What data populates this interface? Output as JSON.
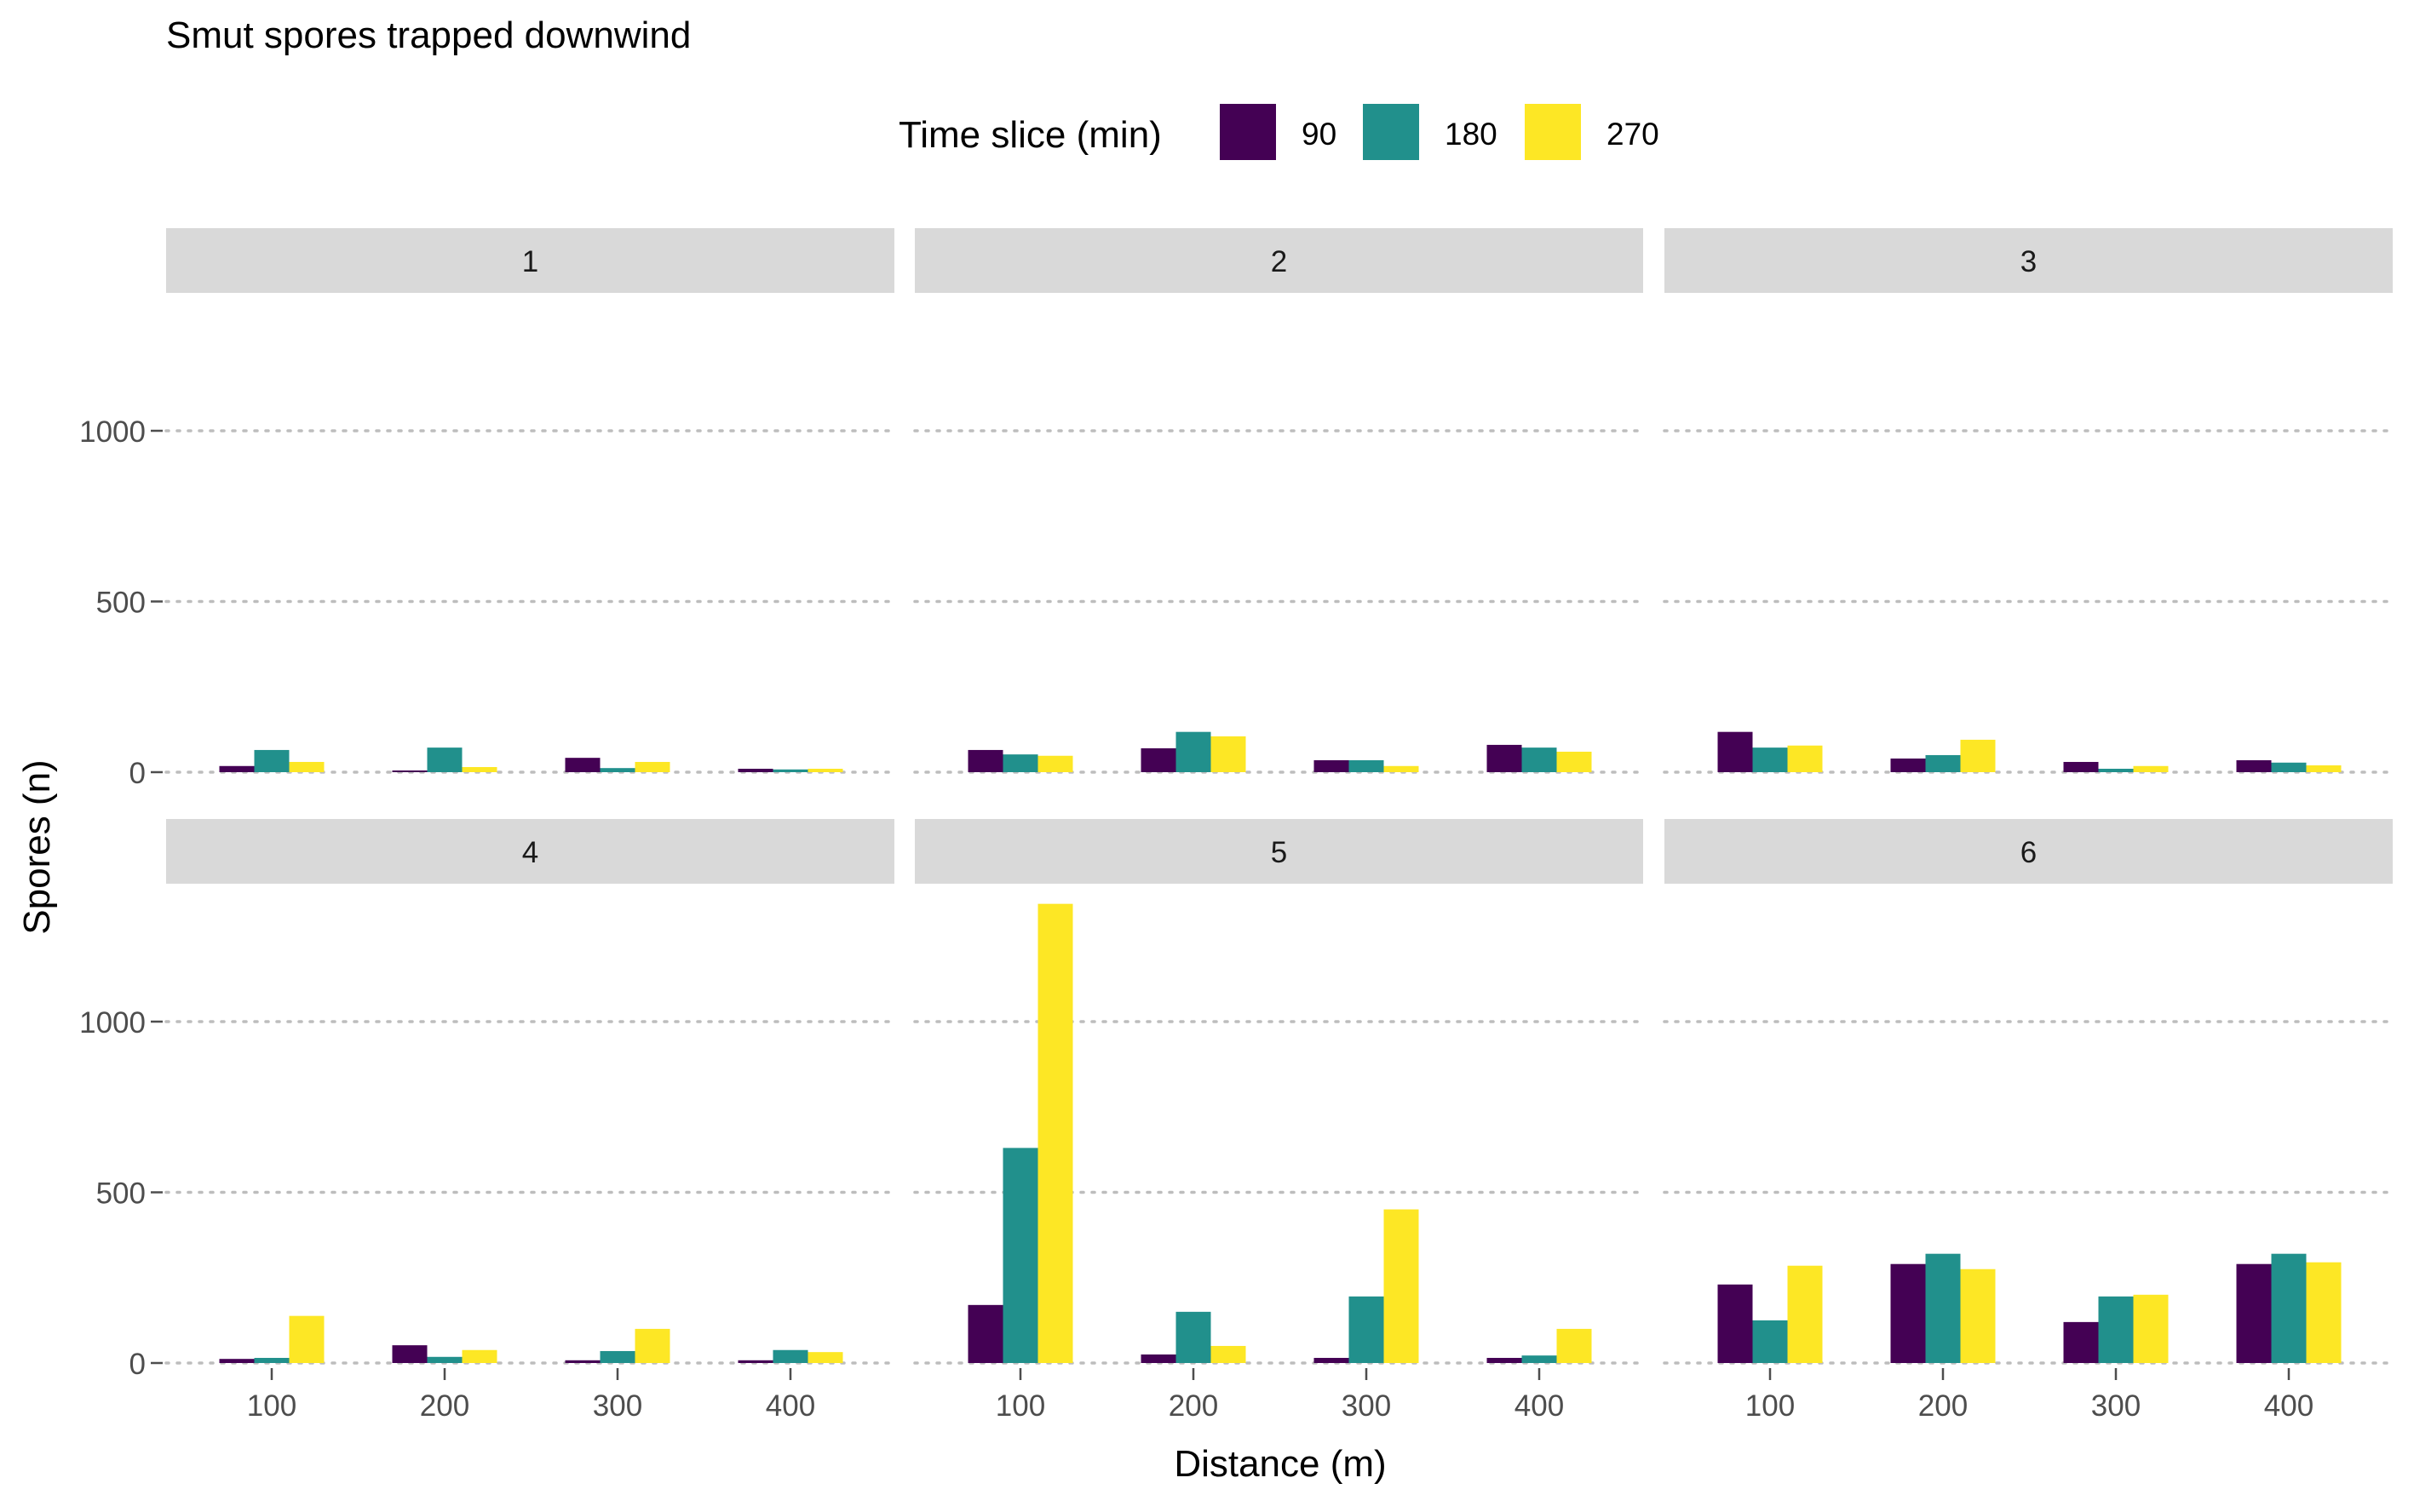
{
  "chart_data": {
    "type": "bar",
    "title": "Smut spores trapped downwind",
    "xlabel": "Distance (m)",
    "ylabel": "Spores (n)",
    "ylim": [
      0,
      1350
    ],
    "yticks": [
      0,
      500,
      1000
    ],
    "grid": "horizontal dotted",
    "legend": {
      "title": "Time slice (min)",
      "placement": "top"
    },
    "categories": [
      "100",
      "200",
      "300",
      "400"
    ],
    "series_names": [
      "90",
      "180",
      "270"
    ],
    "colors": {
      "90": "#440154",
      "180": "#21908C",
      "270": "#FDE725"
    },
    "facets": [
      {
        "label": "1",
        "series": [
          {
            "name": "90",
            "values": [
              18,
              5,
              42,
              10
            ]
          },
          {
            "name": "180",
            "values": [
              65,
              72,
              12,
              8
            ]
          },
          {
            "name": "270",
            "values": [
              30,
              15,
              30,
              10
            ]
          }
        ]
      },
      {
        "label": "2",
        "series": [
          {
            "name": "90",
            "values": [
              65,
              70,
              35,
              80
            ]
          },
          {
            "name": "180",
            "values": [
              52,
              118,
              35,
              72
            ]
          },
          {
            "name": "270",
            "values": [
              48,
              105,
              18,
              60
            ]
          }
        ]
      },
      {
        "label": "3",
        "series": [
          {
            "name": "90",
            "values": [
              118,
              40,
              30,
              35
            ]
          },
          {
            "name": "180",
            "values": [
              72,
              50,
              10,
              28
            ]
          },
          {
            "name": "270",
            "values": [
              78,
              95,
              18,
              20
            ]
          }
        ]
      },
      {
        "label": "4",
        "series": [
          {
            "name": "90",
            "values": [
              12,
              52,
              8,
              8
            ]
          },
          {
            "name": "180",
            "values": [
              15,
              18,
              35,
              38
            ]
          },
          {
            "name": "270",
            "values": [
              138,
              38,
              100,
              32
            ]
          }
        ]
      },
      {
        "label": "5",
        "series": [
          {
            "name": "90",
            "values": [
              170,
              25,
              15,
              15
            ]
          },
          {
            "name": "180",
            "values": [
              630,
              150,
              195,
              22
            ]
          },
          {
            "name": "270",
            "values": [
              1345,
              50,
              450,
              100
            ]
          }
        ]
      },
      {
        "label": "6",
        "series": [
          {
            "name": "90",
            "values": [
              230,
              290,
              120,
              290
            ]
          },
          {
            "name": "180",
            "values": [
              125,
              320,
              195,
              320
            ]
          },
          {
            "name": "270",
            "values": [
              285,
              275,
              200,
              295
            ]
          }
        ]
      }
    ]
  }
}
